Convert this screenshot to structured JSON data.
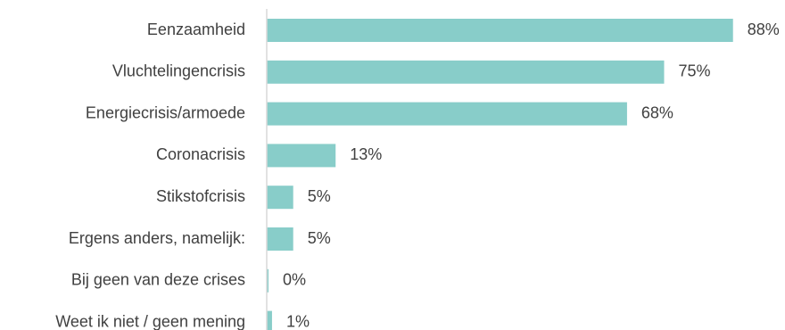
{
  "chart_data": {
    "type": "bar",
    "orientation": "horizontal",
    "categories": [
      "Eenzaamheid",
      "Vluchtelingencrisis",
      "Energiecrisis/armoede",
      "Coronacrisis",
      "Stikstofcrisis",
      "Ergens anders, namelijk:",
      "Bij geen van deze crises",
      "Weet ik niet / geen mening"
    ],
    "values": [
      88,
      75,
      68,
      13,
      5,
      5,
      0,
      1
    ],
    "value_labels": [
      "88%",
      "75%",
      "68%",
      "13%",
      "5%",
      "5%",
      "0%",
      "1%"
    ],
    "title": "",
    "xlabel": "",
    "ylabel": "",
    "xlim": [
      0,
      100
    ],
    "grid": false,
    "legend": "none",
    "bar_color": "#88cdc9",
    "text_color": "#404040",
    "axis_color": "#d9d9d9"
  }
}
